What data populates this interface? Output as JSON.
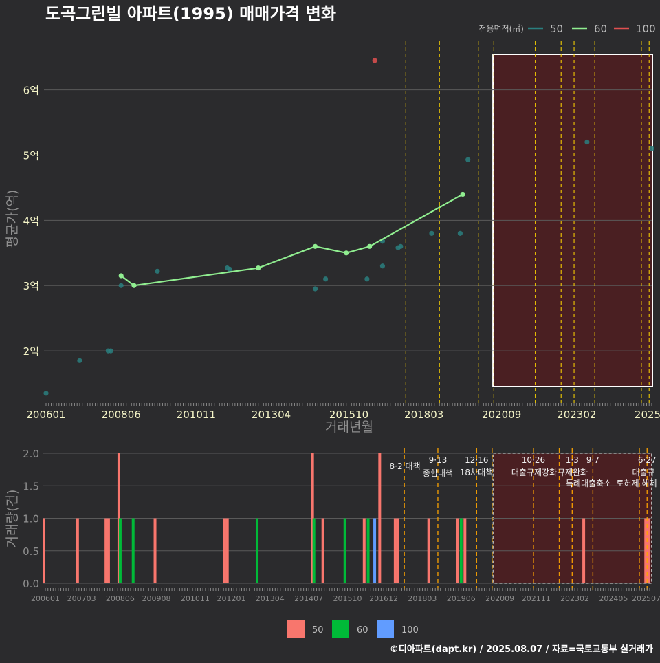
{
  "title": "도곡그린빌 아파트(1995) 매매가격 변화",
  "credit": "©디아파트(dapt.kr) / 2025.08.07 / 자료=국토교통부 실거래가",
  "colors": {
    "background": "#2b2b2d",
    "grid": "#5a5a5a",
    "area50": "#2a7f7f",
    "area60": "#90ee90",
    "area100": "#e05050",
    "bar50": "#f8766d",
    "bar60": "#00ba38",
    "bar100": "#619cff",
    "policy": "#ffd700",
    "highlight_fill": "#4a1f22",
    "title": "#ffffff",
    "tick": "#f5f5c8"
  },
  "chart_data": [
    {
      "type": "scatter",
      "name": "price",
      "ylabel": "평균가(억)",
      "xlabel": "거래년월",
      "ylim": [
        1.2,
        6.85
      ],
      "y_ticks": [
        2,
        3,
        4,
        5,
        6
      ],
      "y_tick_labels": [
        "2억",
        "3억",
        "4억",
        "5억",
        "6억"
      ],
      "x_ticks": [
        "2006-01",
        "2008-06",
        "2010-11",
        "2013-04",
        "2015-10",
        "2018-03",
        "2020-09",
        "2023-02",
        "2025-07"
      ],
      "x_tick_labels": [
        "200601",
        "200806",
        "201011",
        "201304",
        "201510",
        "201803",
        "202009",
        "202302",
        "2025"
      ],
      "legend_title": "전용면적(㎡)",
      "legend": [
        {
          "label": "50",
          "color": "#2a7f7f"
        },
        {
          "label": "60",
          "color": "#90ee90"
        },
        {
          "label": "100",
          "color": "#e05050"
        }
      ],
      "series": [
        {
          "name": "50",
          "points": [
            [
              "2006-01",
              1.35
            ],
            [
              "2007-02",
              1.85
            ],
            [
              "2008-01",
              2.0
            ],
            [
              "2008-02",
              2.0
            ],
            [
              "2008-06",
              3.0
            ],
            [
              "2009-08",
              3.22
            ],
            [
              "2011-11",
              3.27
            ],
            [
              "2011-12",
              3.25
            ],
            [
              "2014-09",
              2.95
            ],
            [
              "2015-01",
              3.1
            ],
            [
              "2016-05",
              3.1
            ],
            [
              "2016-11",
              3.68
            ],
            [
              "2016-11",
              3.3
            ],
            [
              "2017-05",
              3.58
            ],
            [
              "2017-06",
              3.6
            ],
            [
              "2018-06",
              3.8
            ],
            [
              "2019-05",
              3.8
            ],
            [
              "2019-08",
              4.93
            ],
            [
              "2023-06",
              5.2
            ],
            [
              "2025-07",
              5.1
            ]
          ]
        },
        {
          "name": "60",
          "line": true,
          "points": [
            [
              "2008-06",
              3.15
            ],
            [
              "2008-11",
              3.0
            ],
            [
              "2012-11",
              3.27
            ],
            [
              "2014-09",
              3.6
            ],
            [
              "2015-09",
              3.5
            ],
            [
              "2016-06",
              3.6
            ],
            [
              "2019-06",
              4.4
            ]
          ]
        },
        {
          "name": "100",
          "points": [
            [
              "2016-08",
              6.45
            ]
          ]
        }
      ]
    },
    {
      "type": "bar",
      "name": "volume",
      "ylabel": "거래량(건)",
      "ylim": [
        0,
        2.0
      ],
      "y_ticks": [
        0,
        0.5,
        1.0,
        1.5,
        2.0
      ],
      "y_tick_labels": [
        "0.0",
        "0.5",
        "1.0",
        "1.5",
        "2.0"
      ],
      "x_ticks": [
        "2006-01",
        "2007-03",
        "2008-06",
        "2009-08",
        "2010-11",
        "2012-01",
        "2013-04",
        "2014-07",
        "2015-10",
        "2016-12",
        "2018-03",
        "2019-06",
        "2020-09",
        "2021-11",
        "2023-02",
        "2024-05",
        "2025-07"
      ],
      "x_tick_labels": [
        "200601",
        "200703",
        "200806",
        "200908",
        "201011",
        "201201",
        "201304",
        "201407",
        "201510",
        "201612",
        "201803",
        "201906",
        "202009",
        "202111",
        "202302",
        "202405",
        "202507"
      ],
      "legend": [
        {
          "label": "50",
          "color": "#f8766d"
        },
        {
          "label": "60",
          "color": "#00ba38"
        },
        {
          "label": "100",
          "color": "#619cff"
        }
      ],
      "bars": [
        [
          "2006-01",
          "50",
          1
        ],
        [
          "2007-02",
          "50",
          1
        ],
        [
          "2008-01",
          "50",
          1
        ],
        [
          "2008-02",
          "50",
          1
        ],
        [
          "2008-06",
          "50",
          2
        ],
        [
          "2008-06",
          "60",
          1
        ],
        [
          "2008-11",
          "60",
          1
        ],
        [
          "2009-08",
          "50",
          1
        ],
        [
          "2011-11",
          "50",
          1
        ],
        [
          "2011-12",
          "50",
          1
        ],
        [
          "2012-11",
          "60",
          1
        ],
        [
          "2014-09",
          "50",
          2
        ],
        [
          "2014-09",
          "60",
          1
        ],
        [
          "2015-01",
          "50",
          1
        ],
        [
          "2015-09",
          "60",
          1
        ],
        [
          "2016-05",
          "50",
          1
        ],
        [
          "2016-06",
          "60",
          1
        ],
        [
          "2016-08",
          "100",
          1
        ],
        [
          "2016-11",
          "50",
          2
        ],
        [
          "2017-05",
          "50",
          1
        ],
        [
          "2017-06",
          "50",
          1
        ],
        [
          "2018-06",
          "50",
          1
        ],
        [
          "2019-05",
          "50",
          1
        ],
        [
          "2019-06",
          "60",
          1
        ],
        [
          "2019-08",
          "50",
          1
        ],
        [
          "2023-06",
          "50",
          1
        ],
        [
          "2025-06",
          "50",
          1
        ],
        [
          "2025-07",
          "50",
          1
        ]
      ]
    }
  ],
  "policies": [
    {
      "date": "2017-08",
      "date_label": "",
      "label": "8·2 대책"
    },
    {
      "date": "2018-09",
      "date_label": "9·13",
      "label": "종합대책"
    },
    {
      "date": "2019-12",
      "date_label": "12·16",
      "label": "18차대책"
    },
    {
      "date": "2020-06",
      "date_label": "",
      "label": ""
    },
    {
      "date": "2021-10",
      "date_label": "10·26",
      "label": "대출규제강화"
    },
    {
      "date": "2022-08",
      "date_label": "",
      "label": ""
    },
    {
      "date": "2023-01",
      "date_label": "1·3",
      "label": "규제완화"
    },
    {
      "date": "2023-09",
      "date_label": "9·7",
      "label": "특례대출축소"
    },
    {
      "date": "2025-03",
      "date_label": "",
      "label": "토허제 해제"
    },
    {
      "date": "2025-06",
      "date_label": "6·27",
      "label": "대출규"
    }
  ],
  "highlight_range": [
    "2020-07",
    "2025-07"
  ]
}
